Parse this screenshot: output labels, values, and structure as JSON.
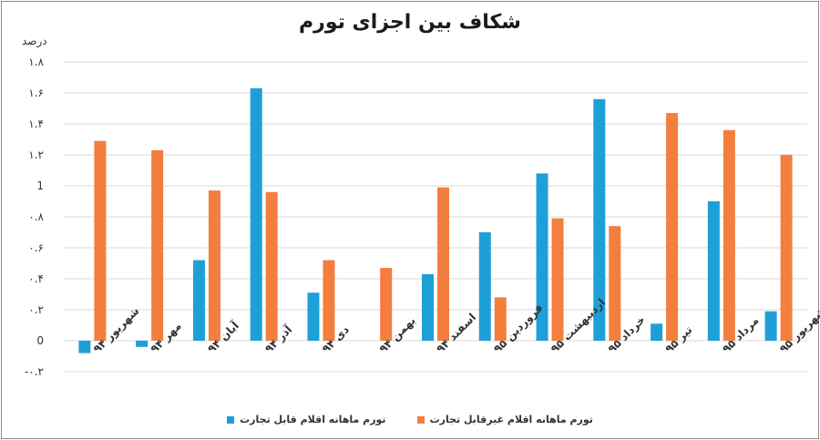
{
  "chart_data": {
    "type": "bar",
    "title": "شکاف بین اجزای تورم",
    "ylabel": "درصد",
    "xlabel": "",
    "ylim": [
      -0.2,
      1.8
    ],
    "yticks": [
      {
        "value": 1.8,
        "label": "۱.۸"
      },
      {
        "value": 1.6,
        "label": "۱.۶"
      },
      {
        "value": 1.4,
        "label": "۱.۴"
      },
      {
        "value": 1.2,
        "label": "۱.۲"
      },
      {
        "value": 1.0,
        "label": "1"
      },
      {
        "value": 0.8,
        "label": "۰.۸"
      },
      {
        "value": 0.6,
        "label": "۰.۶"
      },
      {
        "value": 0.4,
        "label": "۰.۴"
      },
      {
        "value": 0.2,
        "label": "۰.۲"
      },
      {
        "value": 0.0,
        "label": "0"
      },
      {
        "value": -0.2,
        "label": "-۰.۲"
      }
    ],
    "grid": true,
    "legend_position": "bottom",
    "categories": [
      "شهریور ۹۴",
      "مهر ۹۴",
      "آبان ۹۴",
      "آذر ۹۴",
      "دی ۹۴",
      "بهمن ۹۴",
      "اسفند ۹۴",
      "فروردین ۹۵",
      "اردیبهشت ۹۵",
      "خرداد ۹۵",
      "تیر ۹۵",
      "مرداد ۹۵",
      "شهریور ۹۵"
    ],
    "series": [
      {
        "name": "تورم ماهانه اقلام قابل تجارت",
        "color": "#1f9fd8",
        "values": [
          -0.08,
          -0.04,
          0.52,
          1.63,
          0.31,
          0.0,
          0.43,
          0.7,
          1.08,
          1.56,
          0.11,
          0.9,
          0.19
        ]
      },
      {
        "name": "تورم ماهانه اقلام غیرقابل تجارت",
        "color": "#f47e3e",
        "values": [
          1.29,
          1.23,
          0.97,
          0.96,
          0.52,
          0.47,
          0.99,
          0.28,
          0.79,
          0.74,
          1.47,
          1.36,
          1.2
        ]
      }
    ]
  }
}
